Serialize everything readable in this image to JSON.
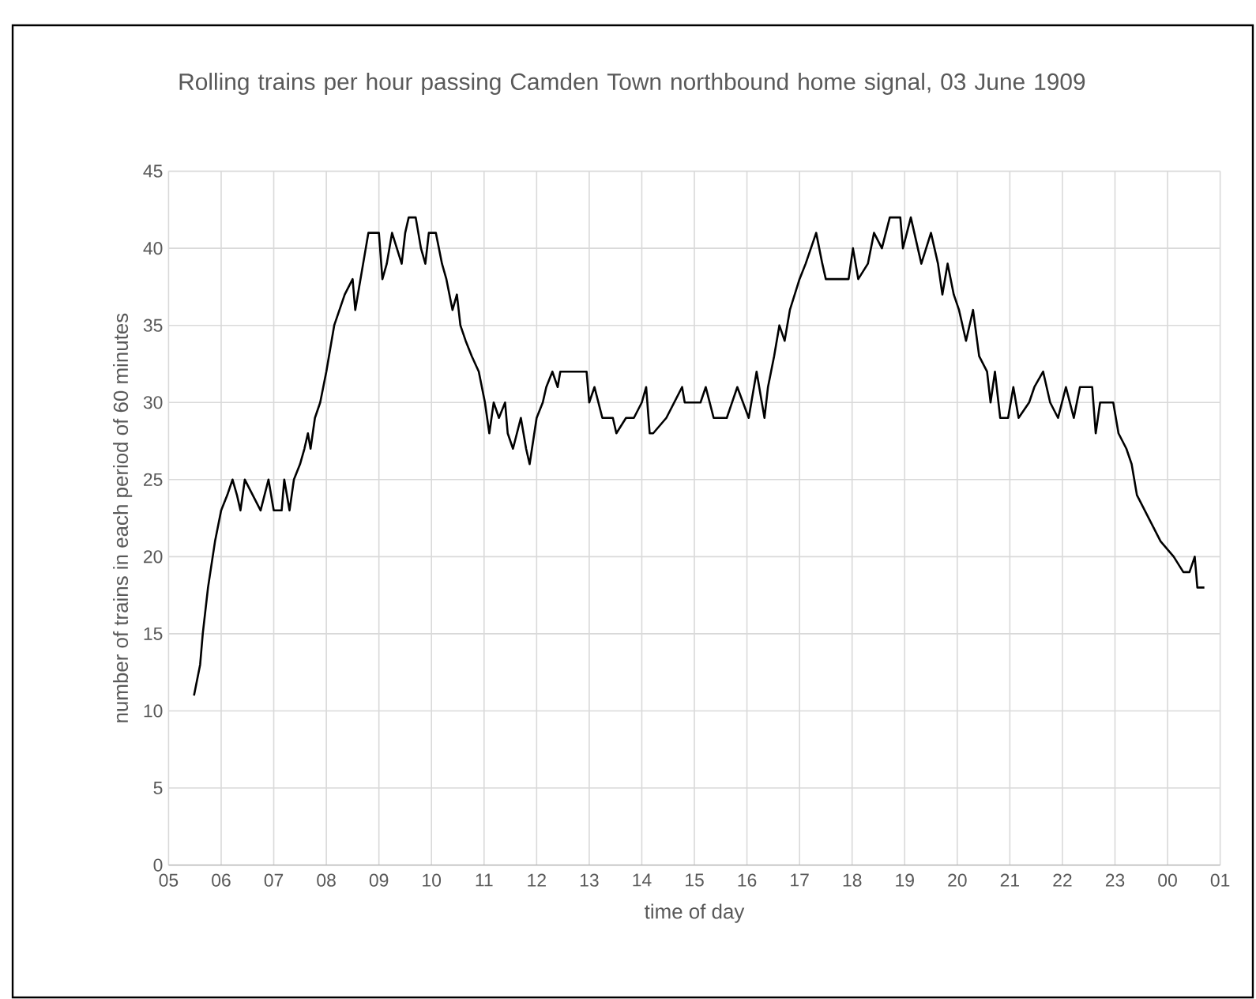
{
  "chart_data": {
    "type": "line",
    "title": "Rolling trains per hour passing Camden Town northbound home signal, 03 June 1909",
    "xlabel": "time of day",
    "ylabel": "number of trains in each period of 60 minutes",
    "xlim": [
      "1909-06-03T05:00",
      "1909-06-04T01:00"
    ],
    "ylim": [
      0,
      45
    ],
    "xticks": [
      {
        "value": "1909-06-03T05:00",
        "label": "05"
      },
      {
        "value": "1909-06-03T06:00",
        "label": "06"
      },
      {
        "value": "1909-06-03T07:00",
        "label": "07"
      },
      {
        "value": "1909-06-03T08:00",
        "label": "08"
      },
      {
        "value": "1909-06-03T09:00",
        "label": "09"
      },
      {
        "value": "1909-06-03T10:00",
        "label": "10"
      },
      {
        "value": "1909-06-03T11:00",
        "label": "11"
      },
      {
        "value": "1909-06-03T12:00",
        "label": "12"
      },
      {
        "value": "1909-06-03T13:00",
        "label": "13"
      },
      {
        "value": "1909-06-03T14:00",
        "label": "14"
      },
      {
        "value": "1909-06-03T15:00",
        "label": "15"
      },
      {
        "value": "1909-06-03T16:00",
        "label": "16"
      },
      {
        "value": "1909-06-03T17:00",
        "label": "17"
      },
      {
        "value": "1909-06-03T18:00",
        "label": "18"
      },
      {
        "value": "1909-06-03T19:00",
        "label": "19"
      },
      {
        "value": "1909-06-03T20:00",
        "label": "20"
      },
      {
        "value": "1909-06-03T21:00",
        "label": "21"
      },
      {
        "value": "1909-06-03T22:00",
        "label": "22"
      },
      {
        "value": "1909-06-03T23:00",
        "label": "23"
      },
      {
        "value": "1909-06-04T00:00",
        "label": "00"
      },
      {
        "value": "1909-06-04T01:00",
        "label": "01"
      }
    ],
    "yticks": [
      0,
      5,
      10,
      15,
      20,
      25,
      30,
      35,
      40,
      45
    ],
    "grid": true,
    "series": [
      {
        "color": "#000000",
        "x": [
          "1909-06-03T05:29",
          "1909-06-03T05:36",
          "1909-06-03T05:39",
          "1909-06-03T05:45",
          "1909-06-03T05:53",
          "1909-06-03T06:00",
          "1909-06-03T06:07",
          "1909-06-03T06:13",
          "1909-06-03T06:18",
          "1909-06-03T06:22",
          "1909-06-03T06:27",
          "1909-06-03T06:36",
          "1909-06-03T06:45",
          "1909-06-03T06:54",
          "1909-06-03T07:00",
          "1909-06-03T07:09",
          "1909-06-03T07:12",
          "1909-06-03T07:18",
          "1909-06-03T07:23",
          "1909-06-03T07:30",
          "1909-06-03T07:35",
          "1909-06-03T07:39",
          "1909-06-03T07:42",
          "1909-06-03T07:47",
          "1909-06-03T07:53",
          "1909-06-03T08:00",
          "1909-06-03T08:09",
          "1909-06-03T08:15",
          "1909-06-03T08:21",
          "1909-06-03T08:30",
          "1909-06-03T08:33",
          "1909-06-03T08:39",
          "1909-06-03T08:45",
          "1909-06-03T08:48",
          "1909-06-03T09:00",
          "1909-06-03T09:04",
          "1909-06-03T09:09",
          "1909-06-03T09:15",
          "1909-06-03T09:26",
          "1909-06-03T09:30",
          "1909-06-03T09:34",
          "1909-06-03T09:42",
          "1909-06-03T09:48",
          "1909-06-03T09:53",
          "1909-06-03T09:57",
          "1909-06-03T10:05",
          "1909-06-03T10:12",
          "1909-06-03T10:17",
          "1909-06-03T10:24",
          "1909-06-03T10:29",
          "1909-06-03T10:33",
          "1909-06-03T10:39",
          "1909-06-03T10:46",
          "1909-06-03T10:54",
          "1909-06-03T11:01",
          "1909-06-03T11:06",
          "1909-06-03T11:11",
          "1909-06-03T11:17",
          "1909-06-03T11:24",
          "1909-06-03T11:27",
          "1909-06-03T11:33",
          "1909-06-03T11:42",
          "1909-06-03T11:48",
          "1909-06-03T11:52",
          "1909-06-03T12:00",
          "1909-06-03T12:07",
          "1909-06-03T12:11",
          "1909-06-03T12:18",
          "1909-06-03T12:24",
          "1909-06-03T12:27",
          "1909-06-03T12:57",
          "1909-06-03T13:00",
          "1909-06-03T13:06",
          "1909-06-03T13:15",
          "1909-06-03T13:27",
          "1909-06-03T13:31",
          "1909-06-03T13:42",
          "1909-06-03T13:51",
          "1909-06-03T14:00",
          "1909-06-03T14:05",
          "1909-06-03T14:09",
          "1909-06-03T14:13",
          "1909-06-03T14:28",
          "1909-06-03T14:46",
          "1909-06-03T14:49",
          "1909-06-03T15:07",
          "1909-06-03T15:13",
          "1909-06-03T15:22",
          "1909-06-03T15:37",
          "1909-06-03T15:49",
          "1909-06-03T16:02",
          "1909-06-03T16:11",
          "1909-06-03T16:20",
          "1909-06-03T16:24",
          "1909-06-03T16:31",
          "1909-06-03T16:37",
          "1909-06-03T16:43",
          "1909-06-03T16:49",
          "1909-06-03T17:00",
          "1909-06-03T17:07",
          "1909-06-03T17:13",
          "1909-06-03T17:19",
          "1909-06-03T17:26",
          "1909-06-03T17:30",
          "1909-06-03T17:56",
          "1909-06-03T18:01",
          "1909-06-03T18:07",
          "1909-06-03T18:18",
          "1909-06-03T18:25",
          "1909-06-03T18:34",
          "1909-06-03T18:43",
          "1909-06-03T18:55",
          "1909-06-03T18:58",
          "1909-06-03T19:07",
          "1909-06-03T19:19",
          "1909-06-03T19:30",
          "1909-06-03T19:38",
          "1909-06-03T19:43",
          "1909-06-03T19:49",
          "1909-06-03T19:56",
          "1909-06-03T20:02",
          "1909-06-03T20:10",
          "1909-06-03T20:18",
          "1909-06-03T20:25",
          "1909-06-03T20:34",
          "1909-06-03T20:38",
          "1909-06-03T20:43",
          "1909-06-03T20:49",
          "1909-06-03T20:58",
          "1909-06-03T21:04",
          "1909-06-03T21:10",
          "1909-06-03T21:22",
          "1909-06-03T21:28",
          "1909-06-03T21:38",
          "1909-06-03T21:46",
          "1909-06-03T21:55",
          "1909-06-03T22:04",
          "1909-06-03T22:13",
          "1909-06-03T22:20",
          "1909-06-03T22:34",
          "1909-06-03T22:38",
          "1909-06-03T22:43",
          "1909-06-03T22:58",
          "1909-06-03T23:04",
          "1909-06-03T23:13",
          "1909-06-03T23:19",
          "1909-06-03T23:25",
          "1909-06-03T23:34",
          "1909-06-03T23:43",
          "1909-06-03T23:52",
          "1909-06-04T00:07",
          "1909-06-04T00:18",
          "1909-06-04T00:25",
          "1909-06-04T00:31",
          "1909-06-04T00:34",
          "1909-06-04T00:42"
        ],
        "values": [
          11,
          13,
          15,
          18,
          21,
          23,
          24,
          25,
          24,
          23,
          25,
          24,
          23,
          25,
          23,
          23,
          25,
          23,
          25,
          26,
          27,
          28,
          27,
          29,
          30,
          32,
          35,
          36,
          37,
          38,
          36,
          38,
          40,
          41,
          41,
          38,
          39,
          41,
          39,
          41,
          42,
          42,
          40,
          39,
          41,
          41,
          39,
          38,
          36,
          37,
          35,
          34,
          33,
          32,
          30,
          28,
          30,
          29,
          30,
          28,
          27,
          29,
          27,
          26,
          29,
          30,
          31,
          32,
          31,
          32,
          32,
          30,
          31,
          29,
          29,
          28,
          29,
          29,
          30,
          31,
          28,
          28,
          29,
          31,
          30,
          30,
          31,
          29,
          29,
          31,
          29,
          32,
          29,
          31,
          33,
          35,
          34,
          36,
          38,
          39,
          40,
          41,
          39,
          38,
          38,
          40,
          38,
          39,
          41,
          40,
          42,
          42,
          40,
          42,
          39,
          41,
          39,
          37,
          39,
          37,
          36,
          34,
          36,
          33,
          32,
          30,
          32,
          29,
          29,
          31,
          29,
          30,
          31,
          32,
          30,
          29,
          31,
          29,
          31,
          31,
          28,
          30,
          30,
          28,
          27,
          26,
          24,
          23,
          22,
          21,
          20,
          19,
          19,
          20,
          18,
          18
        ]
      }
    ]
  }
}
